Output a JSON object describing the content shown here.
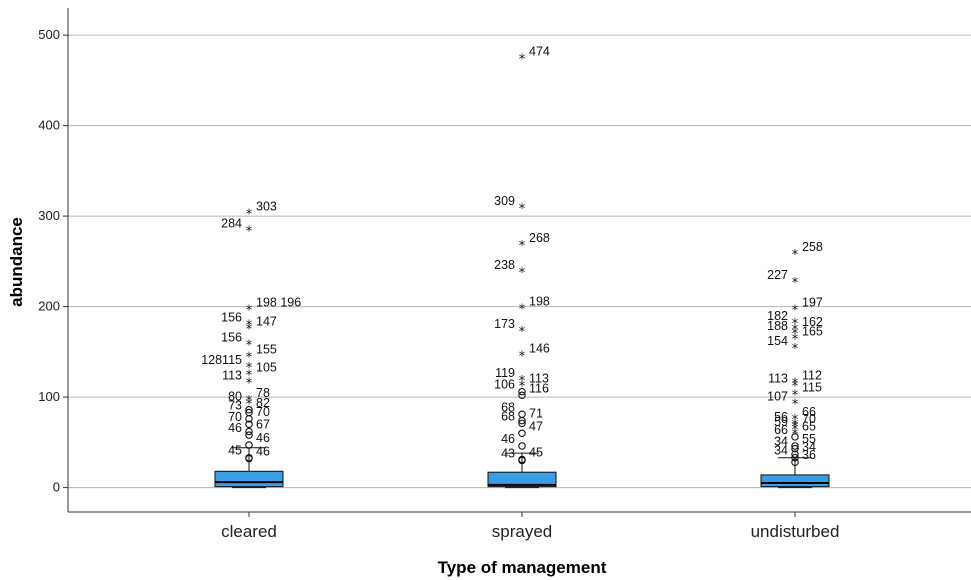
{
  "chart_data": {
    "type": "boxplot",
    "xlabel": "Type of management",
    "ylabel": "abundance",
    "ylim": [
      -27,
      530
    ],
    "yticks": [
      0,
      100,
      200,
      300,
      400,
      500
    ],
    "grid": "horizontal",
    "box_color": "#3a9ee6",
    "categories": [
      "cleared",
      "sprayed",
      "undisturbed"
    ],
    "boxes": [
      {
        "category": "cleared",
        "q1": 1,
        "median": 6,
        "q3": 18,
        "whisker_low": 0,
        "whisker_high": 44,
        "outliers": [
          {
            "value": 303,
            "marker": "extreme",
            "label": "303"
          },
          {
            "value": 284,
            "marker": "extreme",
            "label": "284"
          },
          {
            "value": 197,
            "marker": "extreme",
            "label": "198 196"
          },
          {
            "value": 180,
            "marker": "extreme",
            "label": "156"
          },
          {
            "value": 176,
            "marker": "extreme",
            "label": "147"
          },
          {
            "value": 158,
            "marker": "extreme",
            "label": "156"
          },
          {
            "value": 145,
            "marker": "extreme",
            "label": "155"
          },
          {
            "value": 133,
            "marker": "extreme",
            "label": "128115"
          },
          {
            "value": 125,
            "marker": "extreme",
            "label": "105"
          },
          {
            "value": 116,
            "marker": "extreme",
            "label": "113"
          },
          {
            "value": 97,
            "marker": "extreme",
            "label": "78"
          },
          {
            "value": 93,
            "marker": "extreme",
            "label": "80"
          },
          {
            "value": 86,
            "marker": "circle",
            "label": "82"
          },
          {
            "value": 83,
            "marker": "circle",
            "label": "73"
          },
          {
            "value": 76,
            "marker": "circle",
            "label": "70"
          },
          {
            "value": 70,
            "marker": "circle",
            "label": "70"
          },
          {
            "value": 62,
            "marker": "circle",
            "label": "67"
          },
          {
            "value": 58,
            "marker": "circle",
            "label": "46"
          },
          {
            "value": 47,
            "marker": "circle",
            "label": "46"
          },
          {
            "value": 33,
            "marker": "circle",
            "label": "45"
          },
          {
            "value": 32,
            "marker": "circle",
            "label": "46"
          }
        ]
      },
      {
        "category": "sprayed",
        "q1": 1,
        "median": 3,
        "q3": 17,
        "whisker_low": 0,
        "whisker_high": 38,
        "outliers": [
          {
            "value": 474,
            "marker": "extreme",
            "label": "474"
          },
          {
            "value": 309,
            "marker": "extreme",
            "label": "309"
          },
          {
            "value": 268,
            "marker": "extreme",
            "label": "268"
          },
          {
            "value": 238,
            "marker": "extreme",
            "label": "238"
          },
          {
            "value": 198,
            "marker": "extreme",
            "label": "198"
          },
          {
            "value": 173,
            "marker": "extreme",
            "label": "173"
          },
          {
            "value": 146,
            "marker": "extreme",
            "label": "146"
          },
          {
            "value": 119,
            "marker": "extreme",
            "label": "119"
          },
          {
            "value": 113,
            "marker": "extreme",
            "label": "113"
          },
          {
            "value": 106,
            "marker": "circle",
            "label": "106"
          },
          {
            "value": 102,
            "marker": "circle",
            "label": "116"
          },
          {
            "value": 81,
            "marker": "circle",
            "label": "68"
          },
          {
            "value": 74,
            "marker": "circle",
            "label": "71"
          },
          {
            "value": 71,
            "marker": "circle",
            "label": "68"
          },
          {
            "value": 60,
            "marker": "circle",
            "label": "47"
          },
          {
            "value": 46,
            "marker": "circle",
            "label": "46"
          },
          {
            "value": 31,
            "marker": "circle",
            "label": "45"
          },
          {
            "value": 30,
            "marker": "circle",
            "label": "43"
          }
        ]
      },
      {
        "category": "undisturbed",
        "q1": 1,
        "median": 5,
        "q3": 14,
        "whisker_low": 0,
        "whisker_high": 33,
        "outliers": [
          {
            "value": 258,
            "marker": "extreme",
            "label": "258"
          },
          {
            "value": 227,
            "marker": "extreme",
            "label": "227"
          },
          {
            "value": 197,
            "marker": "extreme",
            "label": "197"
          },
          {
            "value": 182,
            "marker": "extreme",
            "label": "182"
          },
          {
            "value": 175,
            "marker": "extreme",
            "label": "162"
          },
          {
            "value": 171,
            "marker": "extreme",
            "label": "188"
          },
          {
            "value": 165,
            "marker": "extreme",
            "label": "165"
          },
          {
            "value": 154,
            "marker": "extreme",
            "label": "154"
          },
          {
            "value": 116,
            "marker": "extreme",
            "label": "112"
          },
          {
            "value": 113,
            "marker": "extreme",
            "label": "113"
          },
          {
            "value": 103,
            "marker": "extreme",
            "label": "115"
          },
          {
            "value": 93,
            "marker": "extreme",
            "label": "107"
          },
          {
            "value": 76,
            "marker": "extreme",
            "label": "66"
          },
          {
            "value": 70,
            "marker": "extreme",
            "label": "56"
          },
          {
            "value": 68,
            "marker": "extreme",
            "label": "70"
          },
          {
            "value": 65,
            "marker": "extreme",
            "label": "59"
          },
          {
            "value": 60,
            "marker": "extreme",
            "label": "65"
          },
          {
            "value": 56,
            "marker": "circle",
            "label": "66"
          },
          {
            "value": 46,
            "marker": "circle",
            "label": "55"
          },
          {
            "value": 43,
            "marker": "circle",
            "label": "34"
          },
          {
            "value": 37,
            "marker": "circle",
            "label": "34"
          },
          {
            "value": 33,
            "marker": "circle",
            "label": "34"
          },
          {
            "value": 28,
            "marker": "circle",
            "label": "36"
          }
        ]
      }
    ]
  }
}
